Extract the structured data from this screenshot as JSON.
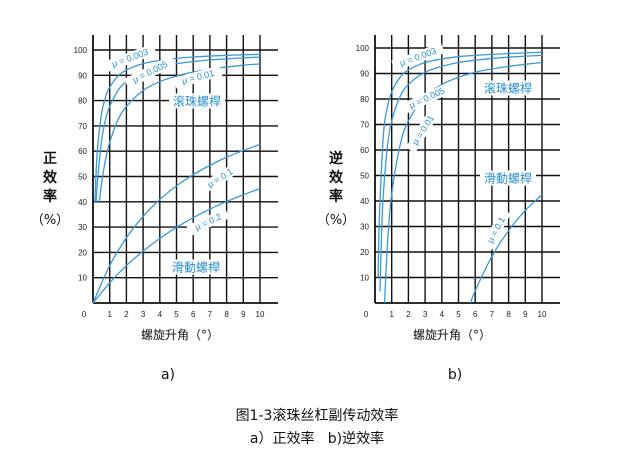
{
  "chart_data": [
    {
      "type": "line",
      "sub_label": "a)",
      "ylabel": [
        "正",
        "效",
        "率",
        "（%）"
      ],
      "xlabel": "螺旋升角（°）",
      "xlim": [
        0,
        10
      ],
      "ylim": [
        0,
        100
      ],
      "grid": true,
      "x_ticks": [
        "0",
        "1",
        "2",
        "3",
        "4",
        "5",
        "6",
        "7",
        "8",
        "9",
        "10"
      ],
      "y_ticks": [
        "10",
        "20",
        "30",
        "40",
        "50",
        "60",
        "70",
        "80",
        "90",
        "100"
      ],
      "annotations": [
        "μ = 0.003",
        "μ = 0.005",
        "μ = 0.01",
        "滚珠螺桿",
        "μ = 0.1",
        "μ = 0.2",
        "滑動螺桿"
      ],
      "series": [
        {
          "name": "μ = 0.003",
          "x": [
            0.115,
            0.25,
            0.5,
            0.75,
            1,
            1.5,
            2,
            3,
            4,
            5,
            6,
            7,
            8,
            9,
            10
          ],
          "y": [
            40,
            59.3,
            74.4,
            81.4,
            85.3,
            89.7,
            92.1,
            94.6,
            95.9,
            96.7,
            97.2,
            97.6,
            97.9,
            98.1,
            98.3
          ]
        },
        {
          "name": "μ = 0.005",
          "x": [
            0.191,
            0.25,
            0.5,
            0.75,
            1,
            1.5,
            2,
            3,
            4,
            5,
            6,
            7,
            8,
            9,
            10
          ],
          "y": [
            40,
            46.6,
            63.6,
            72.4,
            77.7,
            84,
            87.5,
            91.3,
            93.3,
            94.6,
            95.4,
            96.1,
            96.5,
            96.9,
            97.2
          ]
        },
        {
          "name": "μ = 0.01",
          "x": [
            0.382,
            0.5,
            0.75,
            1,
            1.5,
            2,
            3,
            4,
            5,
            6,
            7,
            8,
            9,
            10
          ],
          "y": [
            40,
            46.6,
            56.7,
            63.6,
            72.4,
            77.7,
            84,
            87.5,
            89.7,
            91.3,
            92.4,
            93.3,
            94,
            94.5
          ]
        },
        {
          "name": "μ = 0.1",
          "x": [
            0,
            1,
            2,
            3,
            4,
            5,
            6,
            7,
            8,
            9,
            10
          ],
          "y": [
            0,
            14.8,
            25.8,
            34.2,
            40.9,
            46.3,
            50.7,
            54.4,
            57.6,
            60.3,
            62.7
          ]
        },
        {
          "name": "μ = 0.2",
          "x": [
            0,
            1,
            2,
            3,
            4,
            5,
            6,
            7,
            8,
            9,
            10
          ],
          "y": [
            0,
            8,
            14.8,
            20.5,
            25.5,
            29.9,
            33.7,
            37.1,
            40.1,
            42.8,
            45.2
          ]
        }
      ]
    },
    {
      "type": "line",
      "sub_label": "b)",
      "ylabel": [
        "逆",
        "效",
        "率",
        "（%）"
      ],
      "xlabel": "螺旋升角（°）",
      "xlim": [
        0,
        10
      ],
      "ylim": [
        0,
        100
      ],
      "grid": true,
      "x_ticks": [
        "0",
        "1",
        "2",
        "3",
        "4",
        "5",
        "6",
        "7",
        "8",
        "9",
        "10"
      ],
      "y_ticks": [
        "10",
        "20",
        "30",
        "40",
        "50",
        "60",
        "70",
        "80",
        "90",
        "100"
      ],
      "annotations": [
        "μ = 0.003",
        "μ = 0.005",
        "μ = 0.01",
        "滚珠螺桿",
        "滑動螺桿",
        "μ = 0.1"
      ],
      "series": [
        {
          "name": "μ = 0.003",
          "x": [
            0.19,
            0.25,
            0.5,
            0.75,
            1,
            1.5,
            2,
            3,
            4,
            5,
            6,
            7,
            8,
            9,
            10
          ],
          "y": [
            10,
            31.2,
            65.6,
            77.1,
            82.8,
            88.5,
            91.4,
            94.3,
            95.7,
            96.6,
            97.1,
            97.5,
            97.8,
            98.1,
            98.3
          ]
        },
        {
          "name": "μ = 0.005",
          "x": [
            0.3,
            0.4,
            0.5,
            0.75,
            1,
            1.5,
            2,
            3,
            4,
            5,
            6,
            7,
            8,
            9,
            10
          ],
          "y": [
            4.5,
            28.4,
            42.7,
            61.8,
            71.4,
            80.9,
            85.7,
            90.5,
            92.8,
            94.3,
            95.2,
            95.9,
            96.4,
            96.8,
            97.1
          ]
        },
        {
          "name": "μ = 0.01",
          "x": [
            0.573,
            0.75,
            1,
            1.5,
            2,
            3,
            4,
            5,
            6,
            7,
            8,
            9,
            10
          ],
          "y": [
            0,
            23.6,
            42.7,
            61.8,
            71.4,
            80.9,
            85.7,
            88.5,
            90.5,
            91.8,
            92.8,
            93.6,
            94.3
          ]
        },
        {
          "name": "μ = 0.1",
          "x": [
            5.711,
            6,
            7,
            8,
            9,
            10
          ],
          "y": [
            0,
            4.8,
            18.3,
            28.4,
            36.3,
            42.5
          ]
        }
      ]
    }
  ],
  "caption": {
    "title": "图1-3滚珠丝杠副传动效率",
    "subtitle": "a）正效率   b)逆效率"
  },
  "colors": {
    "curve": "#3a9ad9",
    "annotation": "#2a8fd0",
    "grid": "#111111"
  }
}
